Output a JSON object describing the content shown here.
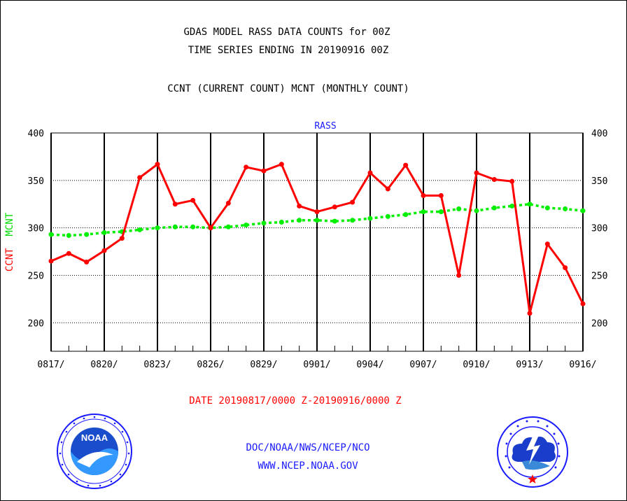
{
  "header": {
    "title_line1": "GDAS MODEL RASS DATA COUNTS for 00Z",
    "title_line2": "TIME SERIES ENDING IN 20190916 00Z",
    "subtitle": "CCNT (CURRENT COUNT) MCNT (MONTHLY COUNT)"
  },
  "footer": {
    "date_range": "DATE 20190817/0000 Z-20190916/0000 Z",
    "org": "DOC/NOAA/NWS/NCEP/NCO",
    "url": "WWW.NCEP.NOAA.GOV"
  },
  "logos": {
    "left": {
      "icon": "noaa-logo-icon",
      "label": "NOAA"
    },
    "right": {
      "icon": "nws-logo-icon"
    }
  },
  "chart_data": {
    "type": "line",
    "title": "RASS",
    "ylabel_parts": [
      "CCNT",
      "MCNT"
    ],
    "ylim": [
      170,
      400
    ],
    "yticks": [
      200,
      250,
      300,
      350,
      400
    ],
    "xlim": [
      0,
      30
    ],
    "xticks": [
      {
        "x": 0,
        "label": "0817/"
      },
      {
        "x": 3,
        "label": "0820/"
      },
      {
        "x": 6,
        "label": "0823/"
      },
      {
        "x": 9,
        "label": "0826/"
      },
      {
        "x": 12,
        "label": "0829/"
      },
      {
        "x": 15,
        "label": "0901/"
      },
      {
        "x": 18,
        "label": "0904/"
      },
      {
        "x": 21,
        "label": "0907/"
      },
      {
        "x": 24,
        "label": "0910/"
      },
      {
        "x": 27,
        "label": "0913/"
      },
      {
        "x": 30,
        "label": "0916/"
      }
    ],
    "grid": true,
    "series": [
      {
        "name": "CCNT",
        "color": "#ff0000",
        "style": "solid",
        "values": [
          265,
          273,
          264,
          276,
          289,
          353,
          367,
          325,
          329,
          300,
          326,
          364,
          360,
          367,
          323,
          317,
          322,
          327,
          358,
          341,
          366,
          334,
          334,
          250,
          358,
          351,
          349,
          210,
          283,
          258,
          220
        ]
      },
      {
        "name": "MCNT",
        "color": "#00ee00",
        "style": "dotted",
        "values": [
          293,
          292,
          293,
          295,
          296,
          298,
          300,
          301,
          301,
          300,
          301,
          303,
          305,
          306,
          308,
          308,
          307,
          308,
          310,
          312,
          314,
          317,
          317,
          320,
          318,
          321,
          323,
          325,
          321,
          320,
          318
        ]
      }
    ]
  }
}
